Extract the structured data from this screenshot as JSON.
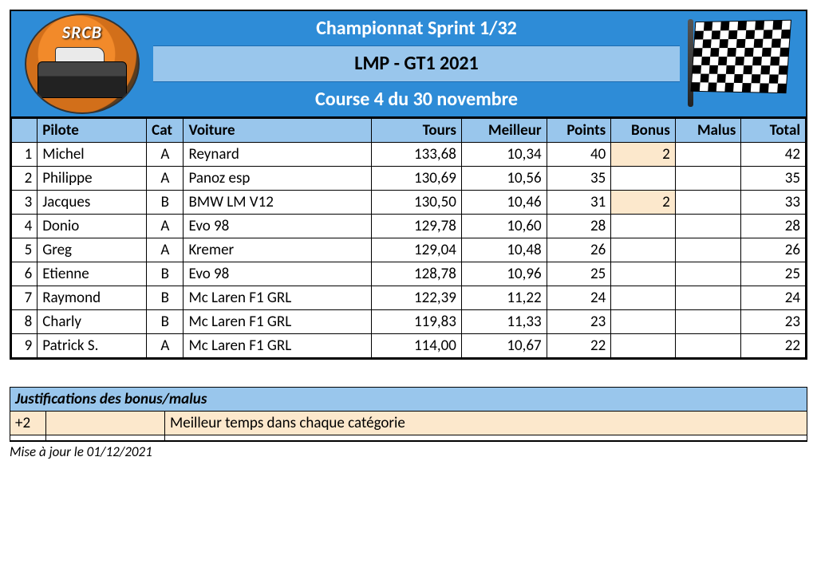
{
  "header": {
    "line1": "Championnat Sprint 1/32",
    "line2": "LMP - GT1 2021",
    "line3": "Course 4 du 30 novembre",
    "logo_text": "SRCB"
  },
  "colors": {
    "band_blue": "#2e8cd7",
    "light_blue": "#99c6ec",
    "cream": "#fce8cc",
    "border": "#000000",
    "text": "#000000",
    "white": "#ffffff"
  },
  "columns": {
    "pos": "",
    "pilote": "Pilote",
    "cat": "Cat",
    "voiture": "Voiture",
    "tours": "Tours",
    "meilleur": "Meilleur",
    "points": "Points",
    "bonus": "Bonus",
    "malus": "Malus",
    "total": "Total"
  },
  "column_align": {
    "pos": "right",
    "pilote": "left",
    "cat": "center",
    "voiture": "left",
    "tours": "right",
    "meilleur": "right",
    "points": "right",
    "bonus": "right",
    "malus": "right",
    "total": "right"
  },
  "rows": [
    {
      "pos": "1",
      "pilote": "Michel",
      "cat": "A",
      "voiture": "Reynard",
      "tours": "133,68",
      "meilleur": "10,34",
      "points": "40",
      "bonus": "2",
      "bonus_hl": true,
      "malus": "",
      "total": "42"
    },
    {
      "pos": "2",
      "pilote": "Philippe",
      "cat": "A",
      "voiture": "Panoz esp",
      "tours": "130,69",
      "meilleur": "10,56",
      "points": "35",
      "bonus": "",
      "bonus_hl": false,
      "malus": "",
      "total": "35"
    },
    {
      "pos": "3",
      "pilote": "Jacques",
      "cat": "B",
      "voiture": "BMW LM V12",
      "tours": "130,50",
      "meilleur": "10,46",
      "points": "31",
      "bonus": "2",
      "bonus_hl": true,
      "malus": "",
      "total": "33"
    },
    {
      "pos": "4",
      "pilote": "Donio",
      "cat": "A",
      "voiture": "Evo 98",
      "tours": "129,78",
      "meilleur": "10,60",
      "points": "28",
      "bonus": "",
      "bonus_hl": false,
      "malus": "",
      "total": "28"
    },
    {
      "pos": "5",
      "pilote": "Greg",
      "cat": "A",
      "voiture": "Kremer",
      "tours": "129,04",
      "meilleur": "10,48",
      "points": "26",
      "bonus": "",
      "bonus_hl": false,
      "malus": "",
      "total": "26"
    },
    {
      "pos": "6",
      "pilote": "Etienne",
      "cat": "B",
      "voiture": "Evo 98",
      "tours": "128,78",
      "meilleur": "10,96",
      "points": "25",
      "bonus": "",
      "bonus_hl": false,
      "malus": "",
      "total": "25"
    },
    {
      "pos": "7",
      "pilote": "Raymond",
      "cat": "B",
      "voiture": "Mc Laren F1 GRL",
      "tours": "122,39",
      "meilleur": "11,22",
      "points": "24",
      "bonus": "",
      "bonus_hl": false,
      "malus": "",
      "total": "24"
    },
    {
      "pos": "8",
      "pilote": "Charly",
      "cat": "B",
      "voiture": "Mc Laren F1 GRL",
      "tours": "119,83",
      "meilleur": "11,33",
      "points": "23",
      "bonus": "",
      "bonus_hl": false,
      "malus": "",
      "total": "23"
    },
    {
      "pos": "9",
      "pilote": "Patrick S.",
      "cat": "A",
      "voiture": "Mc Laren F1 GRL",
      "tours": "114,00",
      "meilleur": "10,67",
      "points": "22",
      "bonus": "",
      "bonus_hl": false,
      "malus": "",
      "total": "22"
    }
  ],
  "justif": {
    "title": "Justifications des bonus/malus",
    "rows": [
      {
        "code": "+2",
        "blank": "",
        "text": "Meilleur temps dans chaque catégorie",
        "cream": true
      },
      {
        "code": "",
        "blank": "",
        "text": "",
        "cream": false
      }
    ]
  },
  "footer": "Mise à jour le 01/12/2021"
}
